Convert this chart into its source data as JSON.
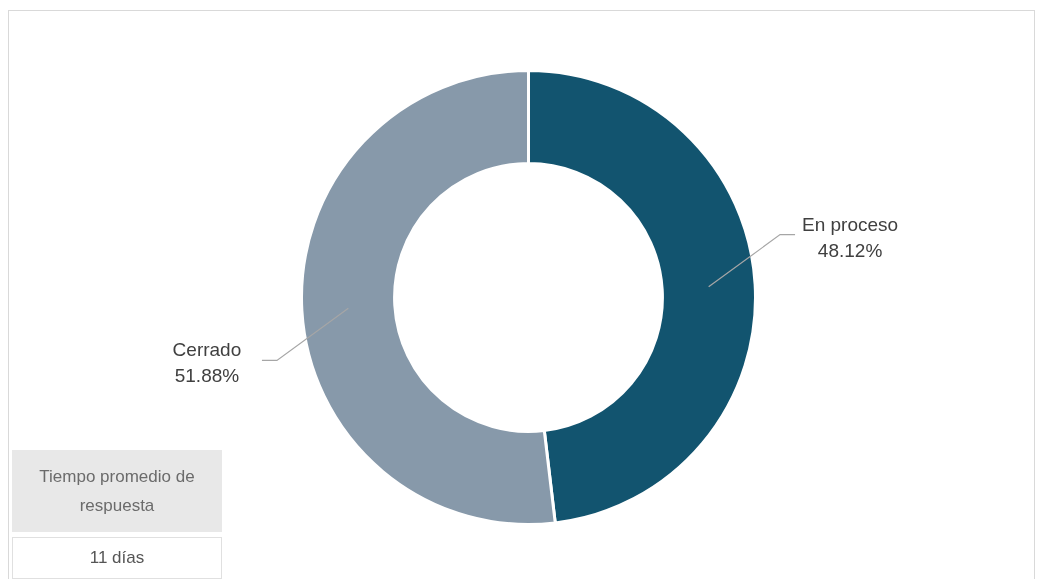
{
  "chart_data": {
    "type": "donut",
    "categories": [
      "En proceso",
      "Cerrado"
    ],
    "values": [
      48.12,
      51.88
    ],
    "colors": [
      "#12546f",
      "#8799aa"
    ],
    "value_labels": [
      "48.12%",
      "51.88%"
    ],
    "annotations": [
      "Tiempo promedio de respuesta",
      "11 días"
    ]
  }
}
